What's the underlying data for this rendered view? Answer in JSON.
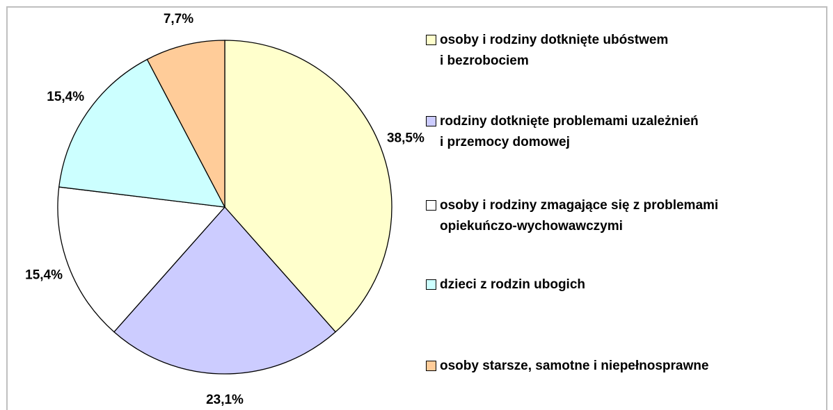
{
  "chart_data": {
    "type": "pie",
    "categories": [
      "osoby i rodziny dotknięte ubóstwem\ni bezrobociem",
      "rodziny dotknięte problemami uzależnień\ni przemocy domowej",
      "osoby i rodziny zmagające się z problemami\nopiekuńczo-wychowawczymi",
      "dzieci z rodzin ubogich",
      "osoby starsze, samotne i niepełnosprawne"
    ],
    "values": [
      38.5,
      23.1,
      15.4,
      15.4,
      7.7
    ],
    "value_labels": [
      "38,5%",
      "23,1%",
      "15,4%",
      "15,4%",
      "7,7%"
    ],
    "colors": [
      "#ffffcc",
      "#ccccff",
      "#ffffff",
      "#ccffff",
      "#ffcc99"
    ],
    "legend": "right"
  }
}
